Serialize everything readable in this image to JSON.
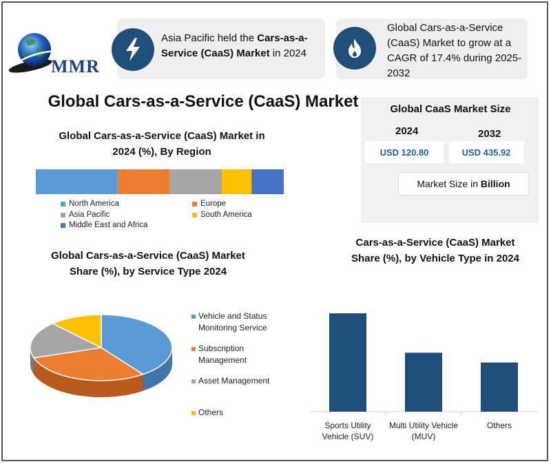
{
  "logo": {
    "text": "MMR"
  },
  "callouts": [
    {
      "prefix": "Asia Pacific held the ",
      "bold": "Cars-as-a-Service (CaaS) Market",
      "suffix": " in 2024",
      "icon": "lightning-icon"
    },
    {
      "text": "Global Cars-as-a-Service (CaaS) Market to grow at a CAGR of 17.4% during 2025-2032",
      "icon": "flame-icon"
    }
  ],
  "main_title": "Global Cars-as-a-Service (CaaS) Market",
  "market_size": {
    "title": "Global CaaS Market Size",
    "year1": "2024",
    "year2": "2032",
    "value1": "USD 120.80",
    "value2": "USD 435.92",
    "unit_prefix": "Market Size in ",
    "unit_bold": "Billion"
  },
  "colors": {
    "north_america": "#5b9bd5",
    "europe": "#ed7d31",
    "asia_pacific": "#a5a5a5",
    "south_america": "#ffc000",
    "mea": "#4472c4",
    "bar": "#1f4e79",
    "icon_bg": "#1f4e79"
  },
  "chart_data": [
    {
      "type": "bar",
      "orientation": "horizontal-stacked",
      "title": "Global Cars-as-a-Service (CaaS) Market in 2024 (%), By Region",
      "series": [
        {
          "name": "North America",
          "values": [
            33
          ]
        },
        {
          "name": "Europe",
          "values": [
            21
          ]
        },
        {
          "name": "Asia Pacific",
          "values": [
            21
          ]
        },
        {
          "name": "South America",
          "values": [
            12
          ]
        },
        {
          "name": "Middle East and Africa",
          "values": [
            13
          ]
        }
      ],
      "legend": "bottom"
    },
    {
      "type": "pie",
      "title": "Global Cars-as-a-Service (CaaS)  Market Share (%), by Service Type 2024",
      "labels": [
        "Vehicle and Status Monitoring Service",
        "Subscription Management",
        "Asset Management",
        "Others"
      ],
      "values": [
        40,
        30,
        18,
        12
      ],
      "legend": "right"
    },
    {
      "type": "bar",
      "title": "Cars-as-a-Service (CaaS) Market Share (%), by Vehicle Type in 2024",
      "categories": [
        "Sports Utility Vehicle (SUV)",
        "Multi Utility Vehicle (MUV)",
        "Others"
      ],
      "values": [
        100,
        60,
        50
      ],
      "ylim": [
        0,
        105
      ]
    }
  ]
}
